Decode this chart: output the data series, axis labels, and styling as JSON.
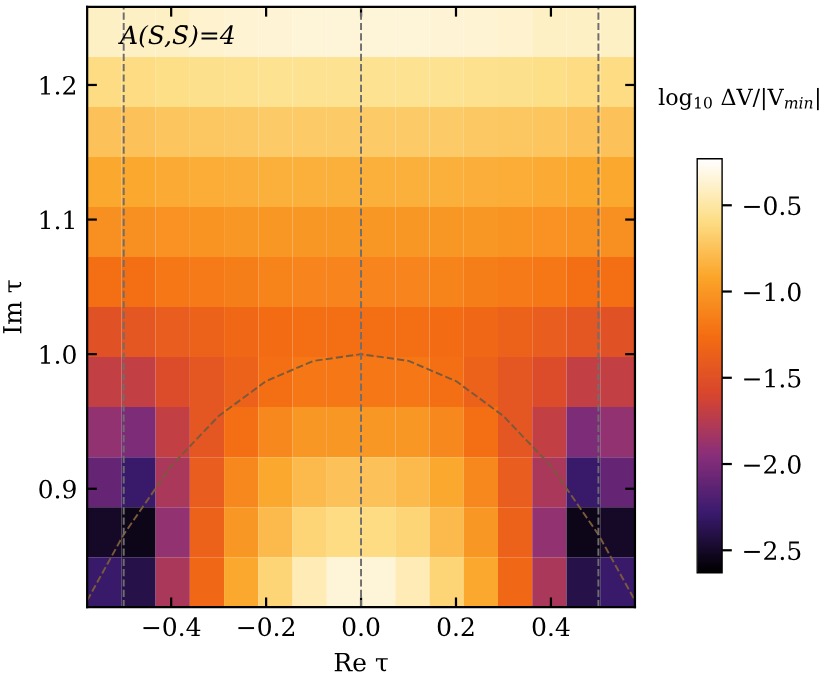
{
  "chart_data": {
    "type": "heatmap",
    "xlabel": "Re τ",
    "ylabel": "Im τ",
    "clabel": "log$_{10}$ ΔV/|V$_{min}$|",
    "annotations": [
      "A(S,S̄)=4"
    ],
    "xlim": [
      -0.577,
      0.577
    ],
    "ylim": [
      0.812,
      1.258
    ],
    "xticks": [
      {
        "value": -0.4,
        "label": "−0.4"
      },
      {
        "value": -0.2,
        "label": "−0.2"
      },
      {
        "value": 0.0,
        "label": "0.0"
      },
      {
        "value": 0.2,
        "label": "0.2"
      },
      {
        "value": 0.4,
        "label": "0.4"
      }
    ],
    "yticks": [
      {
        "value": 0.9,
        "label": "0.9"
      },
      {
        "value": 1.0,
        "label": "1.0"
      },
      {
        "value": 1.1,
        "label": "1.1"
      },
      {
        "value": 1.2,
        "label": "1.2"
      }
    ],
    "clim": [
      -2.63,
      -0.23
    ],
    "cticks": [
      {
        "value": -2.5,
        "label": "−2.5"
      },
      {
        "value": -2.0,
        "label": "−2.0"
      },
      {
        "value": -1.5,
        "label": "−1.5"
      },
      {
        "value": -1.0,
        "label": "−1.0"
      },
      {
        "value": -0.5,
        "label": "−0.5"
      }
    ],
    "cells": [
      [
        -0.4,
        -0.4,
        -0.4,
        -0.38,
        -0.37,
        -0.36,
        -0.35,
        -0.35,
        -0.35,
        -0.35,
        -0.36,
        -0.37,
        -0.38,
        -0.4,
        -0.4,
        -0.4
      ],
      [
        -0.6,
        -0.6,
        -0.58,
        -0.57,
        -0.56,
        -0.55,
        -0.55,
        -0.55,
        -0.55,
        -0.55,
        -0.55,
        -0.56,
        -0.57,
        -0.58,
        -0.6,
        -0.6
      ],
      [
        -0.75,
        -0.75,
        -0.73,
        -0.72,
        -0.71,
        -0.7,
        -0.7,
        -0.7,
        -0.7,
        -0.7,
        -0.7,
        -0.71,
        -0.72,
        -0.73,
        -0.75,
        -0.75
      ],
      [
        -0.9,
        -0.9,
        -0.88,
        -0.87,
        -0.86,
        -0.85,
        -0.85,
        -0.85,
        -0.85,
        -0.85,
        -0.85,
        -0.86,
        -0.87,
        -0.88,
        -0.9,
        -0.9
      ],
      [
        -1.05,
        -1.05,
        -1.03,
        -1.02,
        -1.0,
        -1.0,
        -1.0,
        -1.0,
        -1.0,
        -1.0,
        -1.0,
        -1.0,
        -1.02,
        -1.03,
        -1.05,
        -1.05
      ],
      [
        -1.25,
        -1.25,
        -1.2,
        -1.18,
        -1.15,
        -1.13,
        -1.12,
        -1.12,
        -1.12,
        -1.12,
        -1.13,
        -1.15,
        -1.18,
        -1.2,
        -1.25,
        -1.25
      ],
      [
        -1.5,
        -1.45,
        -1.4,
        -1.35,
        -1.3,
        -1.28,
        -1.25,
        -1.25,
        -1.25,
        -1.25,
        -1.28,
        -1.3,
        -1.35,
        -1.4,
        -1.45,
        -1.5
      ],
      [
        -1.7,
        -1.7,
        -1.55,
        -1.45,
        -1.35,
        -1.25,
        -1.2,
        -1.2,
        -1.2,
        -1.2,
        -1.25,
        -1.35,
        -1.45,
        -1.55,
        -1.7,
        -1.7
      ],
      [
        -1.9,
        -2.0,
        -1.7,
        -1.45,
        -1.25,
        -1.1,
        -1.0,
        -1.0,
        -1.0,
        -1.0,
        -1.1,
        -1.25,
        -1.45,
        -1.7,
        -2.0,
        -1.9
      ],
      [
        -2.1,
        -2.3,
        -1.8,
        -1.4,
        -1.1,
        -0.9,
        -0.8,
        -0.75,
        -0.75,
        -0.8,
        -0.9,
        -1.1,
        -1.4,
        -1.8,
        -2.3,
        -2.1
      ],
      [
        -2.5,
        -2.55,
        -1.9,
        -1.35,
        -1.0,
        -0.8,
        -0.65,
        -0.6,
        -0.6,
        -0.65,
        -0.8,
        -1.0,
        -1.35,
        -1.9,
        -2.55,
        -2.5
      ],
      [
        -2.3,
        -2.4,
        -1.8,
        -1.3,
        -0.9,
        -0.65,
        -0.45,
        -0.35,
        -0.35,
        -0.45,
        -0.65,
        -0.9,
        -1.3,
        -1.8,
        -2.4,
        -2.3
      ]
    ],
    "series": [
      {
        "type": "line",
        "color": "#7a5a3a",
        "line_style": "dashed",
        "x": [
          -0.577,
          -0.5,
          -0.4,
          -0.3,
          -0.2,
          -0.1,
          0.0,
          0.1,
          0.2,
          0.3,
          0.4,
          0.5,
          0.577
        ],
        "values": [
          0.817,
          0.866,
          0.917,
          0.954,
          0.98,
          0.995,
          1.0,
          0.995,
          0.98,
          0.954,
          0.917,
          0.866,
          0.817
        ]
      }
    ],
    "ref_lines": [
      {
        "axis": "x",
        "value": -0.5,
        "color": "#6e6e6e",
        "line_style": "dashed"
      },
      {
        "axis": "x",
        "value": 0.0,
        "color": "#6e6e6e",
        "line_style": "dashed"
      },
      {
        "axis": "x",
        "value": 0.5,
        "color": "#6e6e6e",
        "line_style": "dashed"
      }
    ]
  }
}
